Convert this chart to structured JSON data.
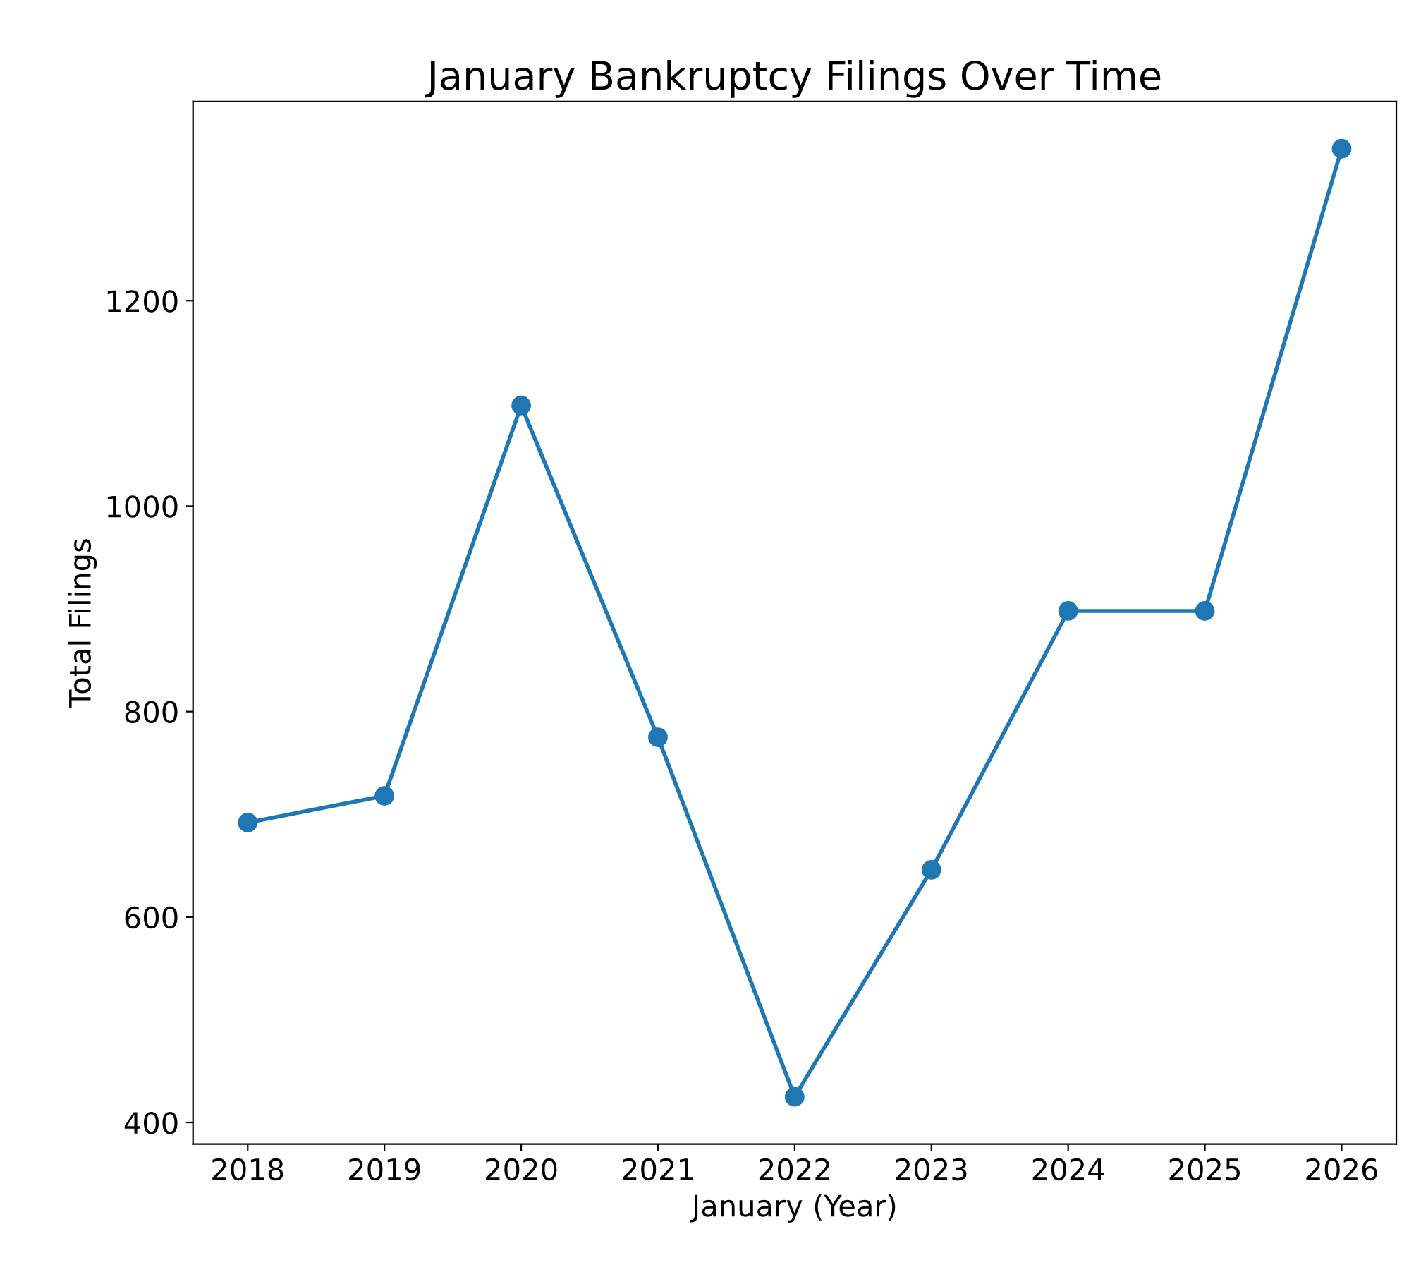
{
  "chart_data": {
    "type": "line",
    "title": "January Bankruptcy Filings Over Time",
    "xlabel": "January (Year)",
    "ylabel": "Total Filings",
    "x": [
      2018,
      2019,
      2020,
      2021,
      2022,
      2023,
      2024,
      2025,
      2026
    ],
    "series": [
      {
        "color": "#1f77b4",
        "values": [
          692,
          718,
          1098,
          775,
          425,
          646,
          898,
          898,
          1348
        ]
      }
    ],
    "xlim": [
      2017.6,
      2026.4
    ],
    "xticks": [
      2018,
      2019,
      2020,
      2021,
      2022,
      2023,
      2024,
      2025,
      2026
    ],
    "ylim": [
      379,
      1394
    ],
    "yticks": [
      400,
      600,
      800,
      1000,
      1200
    ],
    "marker": "circle",
    "line_style": "solid"
  }
}
